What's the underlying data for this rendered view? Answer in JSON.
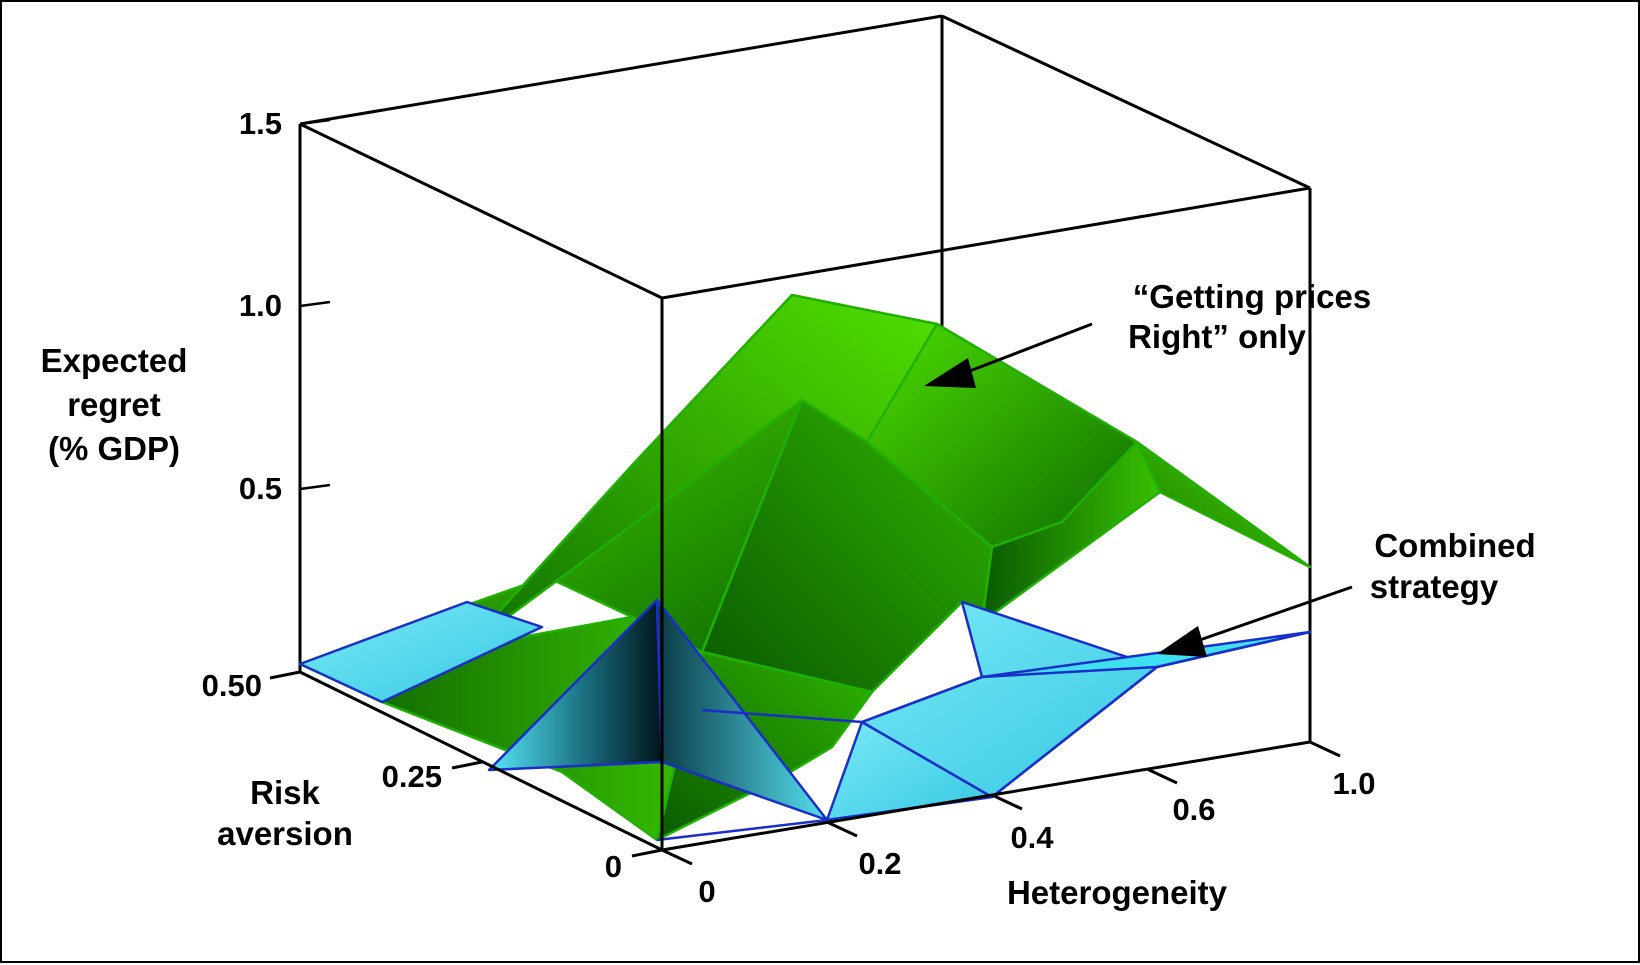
{
  "chart_data": {
    "type": "surface3d",
    "title": "",
    "zlabel": [
      "Expected",
      "regret",
      "(% GDP)"
    ],
    "xlabel": "Heterogeneity",
    "ylabel": [
      "Risk",
      "aversion"
    ],
    "z_ticks": [
      "1.5",
      "1.0",
      "0.5"
    ],
    "x_ticks": [
      "0",
      "0.2",
      "0.4",
      "0.6",
      "1.0"
    ],
    "y_ticks": [
      "0.50",
      "0.25",
      "0"
    ],
    "zlim": [
      0,
      1.5
    ],
    "xlim": [
      0,
      1.0
    ],
    "ylim": [
      0,
      0.5
    ],
    "grid": false,
    "series": [
      {
        "name": "“Getting prices Right” only",
        "color": "#3ecf00",
        "annotation_lines": [
          "“Getting prices",
          "Right” only"
        ],
        "heterogeneity": [
          0,
          0.2,
          0.4,
          0.6,
          1.0
        ],
        "risk_aversion": [
          0,
          0.25,
          0.5
        ],
        "regret": [
          [
            0.1,
            0.1,
            0.05,
            0.1,
            0.1
          ],
          [
            0.2,
            0.45,
            0.35,
            0.25,
            0.5
          ],
          [
            0.3,
            0.55,
            0.8,
            0.95,
            0.15
          ]
        ]
      },
      {
        "name": "Combined strategy",
        "color": "#3fe3f3",
        "annotation_lines": [
          "Combined",
          "strategy"
        ],
        "heterogeneity": [
          0,
          0.2,
          0.4,
          0.6,
          1.0
        ],
        "risk_aversion": [
          0,
          0.25,
          0.5
        ],
        "regret": [
          [
            0.0,
            0.0,
            0.0,
            0.0,
            0.05
          ],
          [
            0.05,
            0.3,
            0.1,
            0.05,
            0.15
          ],
          [
            0.0,
            0.05,
            0.1,
            0.1,
            0.0
          ]
        ]
      }
    ]
  }
}
